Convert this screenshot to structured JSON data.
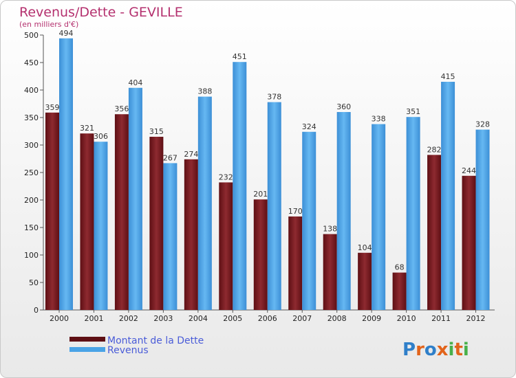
{
  "chart_data": {
    "type": "bar",
    "title": "Revenus/Dette - GEVILLE",
    "subtitle": "(en milliers d'€)",
    "categories": [
      "2000",
      "2001",
      "2002",
      "2003",
      "2004",
      "2005",
      "2006",
      "2007",
      "2008",
      "2009",
      "2010",
      "2011",
      "2012"
    ],
    "series": [
      {
        "name": "Montant de la Dette",
        "color": "#7a1c22",
        "values": [
          359,
          321,
          356,
          315,
          274,
          232,
          201,
          170,
          138,
          104,
          68,
          282,
          244
        ]
      },
      {
        "name": "Revenus",
        "color": "#4aa3e6",
        "values": [
          494,
          306,
          404,
          267,
          388,
          451,
          378,
          324,
          360,
          338,
          351,
          415,
          328
        ]
      }
    ],
    "ylim": [
      0,
      500
    ],
    "yticks": [
      0,
      50,
      100,
      150,
      200,
      250,
      300,
      350,
      400,
      450,
      500
    ],
    "grid": false,
    "legend": "bottom-left"
  },
  "logo": {
    "text": "Proxiti"
  }
}
